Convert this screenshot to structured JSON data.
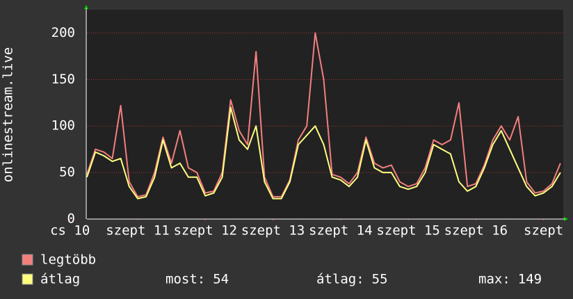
{
  "chart_data": {
    "type": "line",
    "y_label": "onlinestream.live",
    "x": [
      18,
      21,
      24,
      27,
      30,
      33,
      36,
      39,
      42,
      45,
      48,
      51,
      54,
      57,
      60,
      63,
      66,
      69,
      72,
      75,
      78,
      81,
      84,
      87,
      90,
      93,
      96,
      99,
      102,
      105,
      108,
      111,
      114,
      117,
      120,
      123,
      126,
      129,
      132,
      135,
      138,
      141,
      144,
      147,
      150,
      153,
      156,
      159,
      162,
      165,
      168,
      171,
      174,
      177,
      180,
      183,
      186
    ],
    "xlim": [
      18,
      187
    ],
    "xticks": [
      {
        "value": 12,
        "label": "cs 10"
      },
      {
        "value": 36,
        "label": "szept 11"
      },
      {
        "value": 60,
        "label": "szept 12"
      },
      {
        "value": 84,
        "label": "szept 13"
      },
      {
        "value": 108,
        "label": "szept 14"
      },
      {
        "value": 132,
        "label": "szept 15"
      },
      {
        "value": 156,
        "label": "szept 16"
      },
      {
        "value": 180,
        "label": "szept"
      }
    ],
    "ylim": [
      0,
      225
    ],
    "yticks": [
      0,
      50,
      100,
      150,
      200
    ],
    "grid": true,
    "series": [
      {
        "name": "legtöbb",
        "color": "#f47f7f",
        "values": [
          48,
          75,
          72,
          65,
          122,
          40,
          24,
          26,
          50,
          88,
          60,
          95,
          55,
          50,
          28,
          30,
          50,
          128,
          95,
          80,
          180,
          45,
          24,
          24,
          42,
          85,
          100,
          200,
          150,
          48,
          45,
          38,
          50,
          88,
          60,
          55,
          58,
          40,
          35,
          38,
          55,
          85,
          80,
          85,
          125,
          35,
          38,
          58,
          85,
          100,
          85,
          110,
          40,
          28,
          30,
          38,
          60
        ]
      },
      {
        "name": "átlag",
        "color": "#ffff80",
        "values": [
          45,
          72,
          68,
          62,
          65,
          35,
          22,
          24,
          45,
          85,
          55,
          60,
          45,
          45,
          25,
          28,
          45,
          120,
          85,
          75,
          100,
          40,
          22,
          22,
          40,
          80,
          90,
          100,
          80,
          45,
          42,
          35,
          45,
          85,
          55,
          50,
          50,
          35,
          32,
          35,
          50,
          80,
          75,
          70,
          40,
          30,
          35,
          55,
          80,
          95,
          75,
          55,
          35,
          25,
          28,
          35,
          50
        ]
      }
    ],
    "stats": [
      {
        "label": "most:",
        "value": 54
      },
      {
        "label": "átlag:",
        "value": 55
      },
      {
        "label": "max:",
        "value": 149
      }
    ]
  }
}
